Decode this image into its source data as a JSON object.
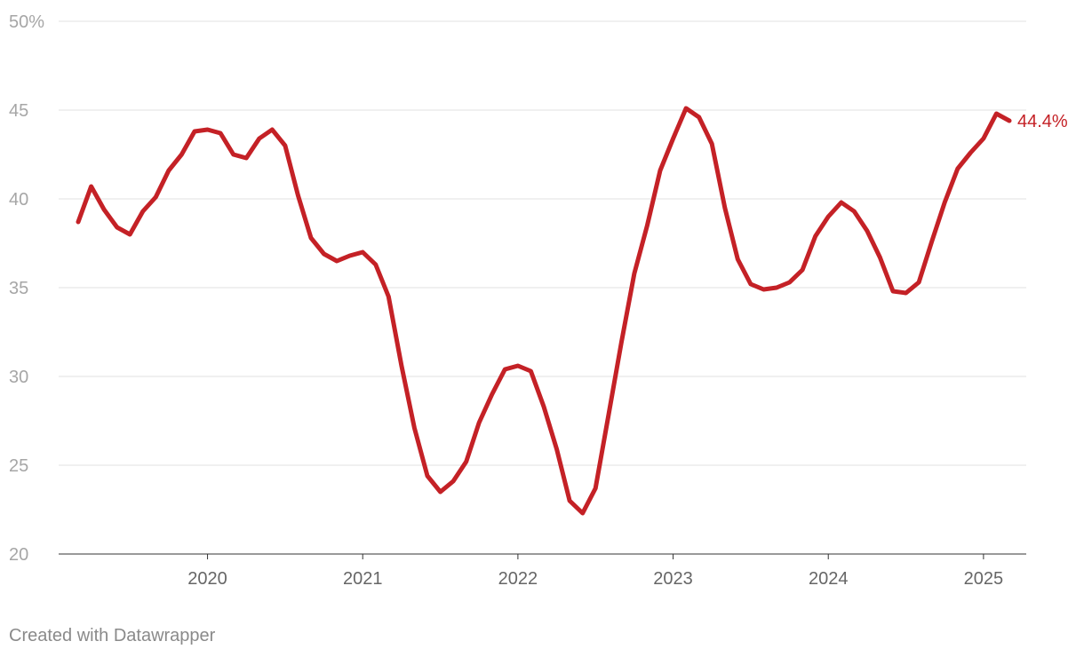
{
  "chart_data": {
    "type": "line",
    "title": "",
    "xlabel": "",
    "ylabel": "",
    "ylim": [
      20,
      50
    ],
    "xlim": [
      "2019-02",
      "2025-04"
    ],
    "grid": true,
    "y_ticks": [
      20,
      25,
      30,
      35,
      40,
      45,
      50
    ],
    "y_tick_labels": [
      "20",
      "25",
      "30",
      "35",
      "40",
      "45",
      "50%"
    ],
    "x_ticks": [
      "2020-01",
      "2021-01",
      "2022-01",
      "2023-01",
      "2024-01",
      "2025-01"
    ],
    "x_tick_labels": [
      "2020",
      "2021",
      "2022",
      "2023",
      "2024",
      "2025"
    ],
    "line_color": "#c42126",
    "end_label": "44.4%",
    "series": [
      {
        "x": [
          "2019-03",
          "2019-04",
          "2019-05",
          "2019-06",
          "2019-07",
          "2019-08",
          "2019-09",
          "2019-10",
          "2019-11",
          "2019-12",
          "2020-01",
          "2020-02",
          "2020-03",
          "2020-04",
          "2020-05",
          "2020-06",
          "2020-07",
          "2020-08",
          "2020-09",
          "2020-10",
          "2020-11",
          "2020-12",
          "2021-01",
          "2021-02",
          "2021-03",
          "2021-04",
          "2021-05",
          "2021-06",
          "2021-07",
          "2021-08",
          "2021-09",
          "2021-10",
          "2021-11",
          "2021-12",
          "2022-01",
          "2022-02",
          "2022-03",
          "2022-04",
          "2022-05",
          "2022-06",
          "2022-07",
          "2022-08",
          "2022-09",
          "2022-10",
          "2022-11",
          "2022-12",
          "2023-01",
          "2023-02",
          "2023-03",
          "2023-04",
          "2023-05",
          "2023-06",
          "2023-07",
          "2023-08",
          "2023-09",
          "2023-10",
          "2023-11",
          "2023-12",
          "2024-01",
          "2024-02",
          "2024-03",
          "2024-04",
          "2024-05",
          "2024-06",
          "2024-07",
          "2024-08",
          "2024-09",
          "2024-10",
          "2024-11",
          "2024-12",
          "2025-01",
          "2025-02",
          "2025-03"
        ],
        "values": [
          38.7,
          40.7,
          39.4,
          38.4,
          38.0,
          39.3,
          40.1,
          41.6,
          42.5,
          43.8,
          43.9,
          43.7,
          42.5,
          42.3,
          43.4,
          43.9,
          43.0,
          40.2,
          37.8,
          36.9,
          36.5,
          36.8,
          37.0,
          36.3,
          34.5,
          30.6,
          27.1,
          24.4,
          23.5,
          24.1,
          25.2,
          27.4,
          29.0,
          30.4,
          30.6,
          30.3,
          28.3,
          25.9,
          23.0,
          22.3,
          23.7,
          27.8,
          31.9,
          35.8,
          38.5,
          41.6,
          43.4,
          45.1,
          44.6,
          43.1,
          39.5,
          36.6,
          35.2,
          34.9,
          35.0,
          35.3,
          36.0,
          37.9,
          39.0,
          39.8,
          39.3,
          38.2,
          36.7,
          34.8,
          34.7,
          35.3,
          37.6,
          39.8,
          41.7,
          42.6,
          43.4,
          44.8,
          44.4
        ]
      }
    ]
  },
  "footer": {
    "credit": "Created with Datawrapper"
  }
}
